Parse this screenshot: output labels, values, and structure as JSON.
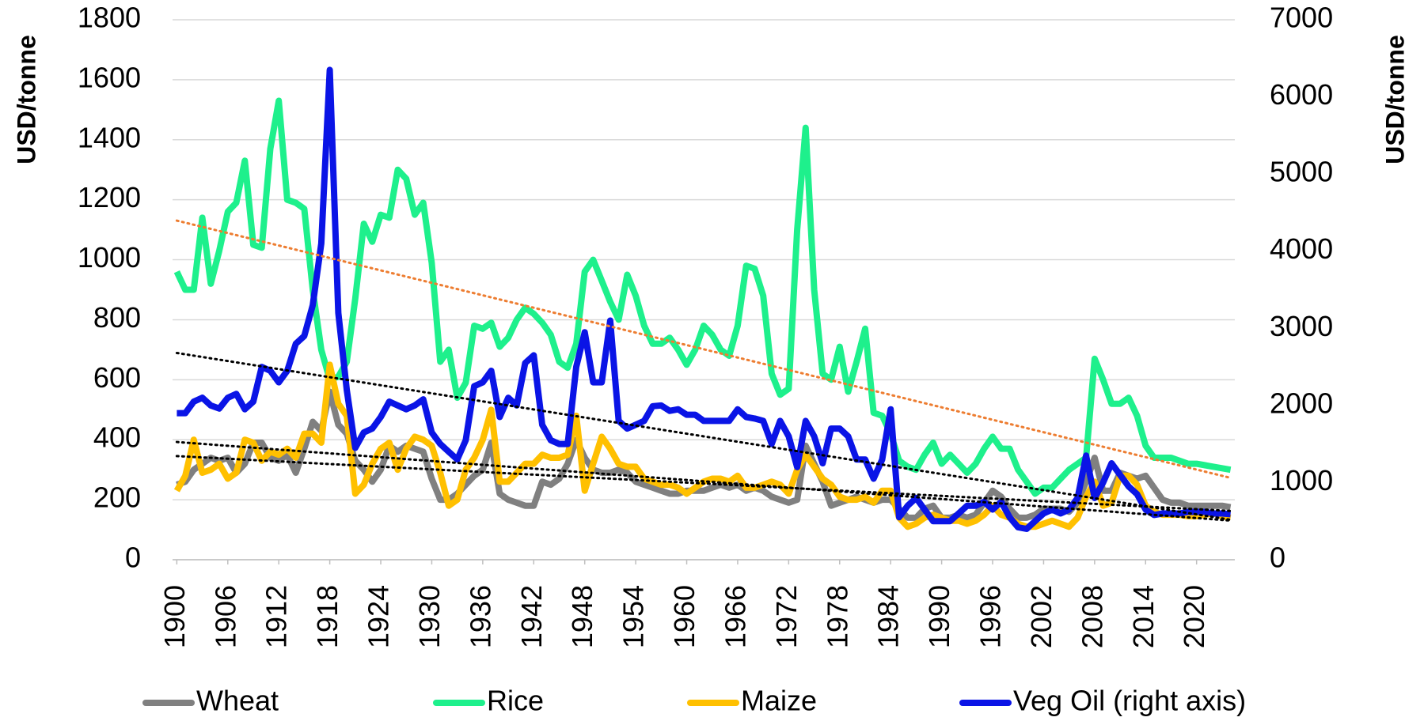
{
  "chart_data": {
    "type": "line",
    "ylabel": "USD/tonne",
    "y2label": "USD/tonne",
    "x": [
      1900,
      1901,
      1902,
      1903,
      1904,
      1905,
      1906,
      1907,
      1908,
      1909,
      1910,
      1911,
      1912,
      1913,
      1914,
      1915,
      1916,
      1917,
      1918,
      1919,
      1920,
      1921,
      1922,
      1923,
      1924,
      1925,
      1926,
      1927,
      1928,
      1929,
      1930,
      1931,
      1932,
      1933,
      1934,
      1935,
      1936,
      1937,
      1938,
      1939,
      1940,
      1941,
      1942,
      1943,
      1944,
      1945,
      1946,
      1947,
      1948,
      1949,
      1950,
      1951,
      1952,
      1953,
      1954,
      1955,
      1956,
      1957,
      1958,
      1959,
      1960,
      1961,
      1962,
      1963,
      1964,
      1965,
      1966,
      1967,
      1968,
      1969,
      1970,
      1971,
      1972,
      1973,
      1974,
      1975,
      1976,
      1977,
      1978,
      1979,
      1980,
      1981,
      1982,
      1983,
      1984,
      1985,
      1986,
      1987,
      1988,
      1989,
      1990,
      1991,
      1992,
      1993,
      1994,
      1995,
      1996,
      1997,
      1998,
      1999,
      2000,
      2001,
      2002,
      2003,
      2004,
      2005,
      2006,
      2007,
      2008,
      2009,
      2010,
      2011,
      2012,
      2013,
      2014,
      2015,
      2016,
      2017,
      2018,
      2019,
      2020,
      2021,
      2022,
      2023,
      2024
    ],
    "xlim": [
      1899.5,
      2024.5
    ],
    "xticks": [
      1900,
      1906,
      1912,
      1918,
      1924,
      1930,
      1936,
      1942,
      1948,
      1954,
      1960,
      1966,
      1972,
      1978,
      1984,
      1990,
      1996,
      2002,
      2008,
      2014,
      2020
    ],
    "ylim": [
      0,
      1800
    ],
    "yticks": [
      0,
      200,
      400,
      600,
      800,
      1000,
      1200,
      1400,
      1600,
      1800
    ],
    "y2lim": [
      0,
      7000
    ],
    "y2ticks": [
      0,
      1000,
      2000,
      3000,
      4000,
      5000,
      6000,
      7000
    ],
    "grid": true,
    "legend": "bottom",
    "series": [
      {
        "name": "Wheat",
        "color": "#808080",
        "trendline": "#000000",
        "values": [
          250,
          260,
          300,
          320,
          340,
          330,
          340,
          290,
          320,
          390,
          390,
          340,
          330,
          350,
          290,
          370,
          460,
          430,
          560,
          450,
          420,
          330,
          300,
          260,
          300,
          380,
          360,
          380,
          370,
          360,
          270,
          200,
          200,
          220,
          250,
          280,
          300,
          390,
          220,
          200,
          190,
          180,
          180,
          260,
          250,
          270,
          320,
          400,
          340,
          300,
          290,
          290,
          300,
          290,
          260,
          250,
          240,
          230,
          220,
          220,
          230,
          230,
          230,
          240,
          250,
          240,
          250,
          230,
          240,
          230,
          210,
          200,
          190,
          200,
          380,
          320,
          260,
          180,
          190,
          200,
          210,
          200,
          190,
          200,
          200,
          170,
          140,
          140,
          170,
          180,
          140,
          140,
          150,
          140,
          150,
          190,
          230,
          210,
          170,
          140,
          140,
          150,
          170,
          170,
          170,
          160,
          190,
          260,
          340,
          230,
          230,
          290,
          280,
          270,
          280,
          240,
          200,
          190,
          190,
          180,
          180,
          180,
          180,
          180,
          175
        ]
      },
      {
        "name": "Rice",
        "color": "#1ef08c",
        "trendline": "#ed7d31",
        "values": [
          960,
          900,
          900,
          1140,
          920,
          1030,
          1160,
          1190,
          1330,
          1050,
          1040,
          1370,
          1530,
          1200,
          1190,
          1170,
          900,
          700,
          600,
          610,
          660,
          870,
          1120,
          1060,
          1150,
          1140,
          1300,
          1270,
          1150,
          1190,
          990,
          660,
          700,
          540,
          590,
          780,
          770,
          790,
          710,
          740,
          800,
          840,
          820,
          790,
          750,
          660,
          640,
          720,
          960,
          1000,
          930,
          860,
          800,
          950,
          880,
          780,
          720,
          720,
          740,
          700,
          650,
          700,
          780,
          750,
          700,
          680,
          780,
          980,
          970,
          880,
          620,
          550,
          570,
          1100,
          1440,
          900,
          620,
          600,
          710,
          560,
          660,
          770,
          490,
          480,
          420,
          330,
          310,
          300,
          350,
          390,
          320,
          350,
          320,
          290,
          320,
          370,
          410,
          370,
          370,
          300,
          260,
          220,
          240,
          240,
          270,
          300,
          320,
          340,
          670,
          600,
          520,
          520,
          540,
          480,
          380,
          340,
          340,
          340,
          330,
          320,
          320,
          315,
          310,
          305,
          300
        ]
      },
      {
        "name": "Maize",
        "color": "#ffc000",
        "trendline": "#000000",
        "values": [
          230,
          280,
          400,
          290,
          300,
          320,
          270,
          290,
          400,
          390,
          330,
          360,
          350,
          370,
          340,
          420,
          420,
          390,
          650,
          520,
          480,
          220,
          250,
          320,
          370,
          390,
          300,
          370,
          410,
          400,
          380,
          290,
          180,
          200,
          300,
          340,
          400,
          500,
          260,
          260,
          290,
          320,
          320,
          350,
          340,
          340,
          350,
          480,
          230,
          320,
          410,
          370,
          320,
          310,
          310,
          270,
          260,
          250,
          250,
          240,
          220,
          240,
          260,
          270,
          270,
          260,
          280,
          240,
          240,
          250,
          260,
          250,
          220,
          300,
          350,
          310,
          270,
          250,
          210,
          200,
          200,
          210,
          190,
          230,
          230,
          140,
          110,
          120,
          140,
          150,
          140,
          130,
          130,
          120,
          130,
          150,
          180,
          150,
          140,
          120,
          110,
          110,
          120,
          130,
          120,
          110,
          140,
          210,
          260,
          180,
          190,
          280,
          280,
          250,
          180,
          160,
          150,
          150,
          150,
          145,
          145,
          150,
          155,
          145,
          140
        ]
      },
      {
        "name": "Veg Oil (right axis)",
        "color": "#0a14e6",
        "trendline": "#000000",
        "axis": "y2",
        "values": [
          1900,
          1900,
          2050,
          2100,
          2000,
          1960,
          2100,
          2150,
          1950,
          2050,
          2500,
          2450,
          2300,
          2450,
          2800,
          2900,
          3300,
          4100,
          6350,
          3200,
          2200,
          1450,
          1650,
          1700,
          1850,
          2050,
          2000,
          1950,
          2000,
          2080,
          1650,
          1500,
          1400,
          1300,
          1550,
          2250,
          2300,
          2450,
          1850,
          2100,
          2000,
          2550,
          2650,
          1750,
          1550,
          1500,
          1500,
          2500,
          2950,
          2300,
          2300,
          3100,
          1800,
          1700,
          1750,
          1800,
          1990,
          2000,
          1930,
          1950,
          1880,
          1880,
          1800,
          1800,
          1800,
          1800,
          1950,
          1850,
          1830,
          1800,
          1500,
          1800,
          1600,
          1200,
          1800,
          1600,
          1250,
          1700,
          1700,
          1600,
          1300,
          1300,
          1050,
          1300,
          1950,
          550,
          700,
          800,
          650,
          500,
          500,
          500,
          600,
          700,
          700,
          750,
          650,
          750,
          550,
          420,
          400,
          500,
          600,
          650,
          600,
          650,
          800,
          1350,
          800,
          1000,
          1250,
          1100,
          950,
          850,
          650,
          580,
          600,
          600,
          600,
          620,
          620,
          620,
          600,
          600,
          590
        ]
      }
    ]
  }
}
